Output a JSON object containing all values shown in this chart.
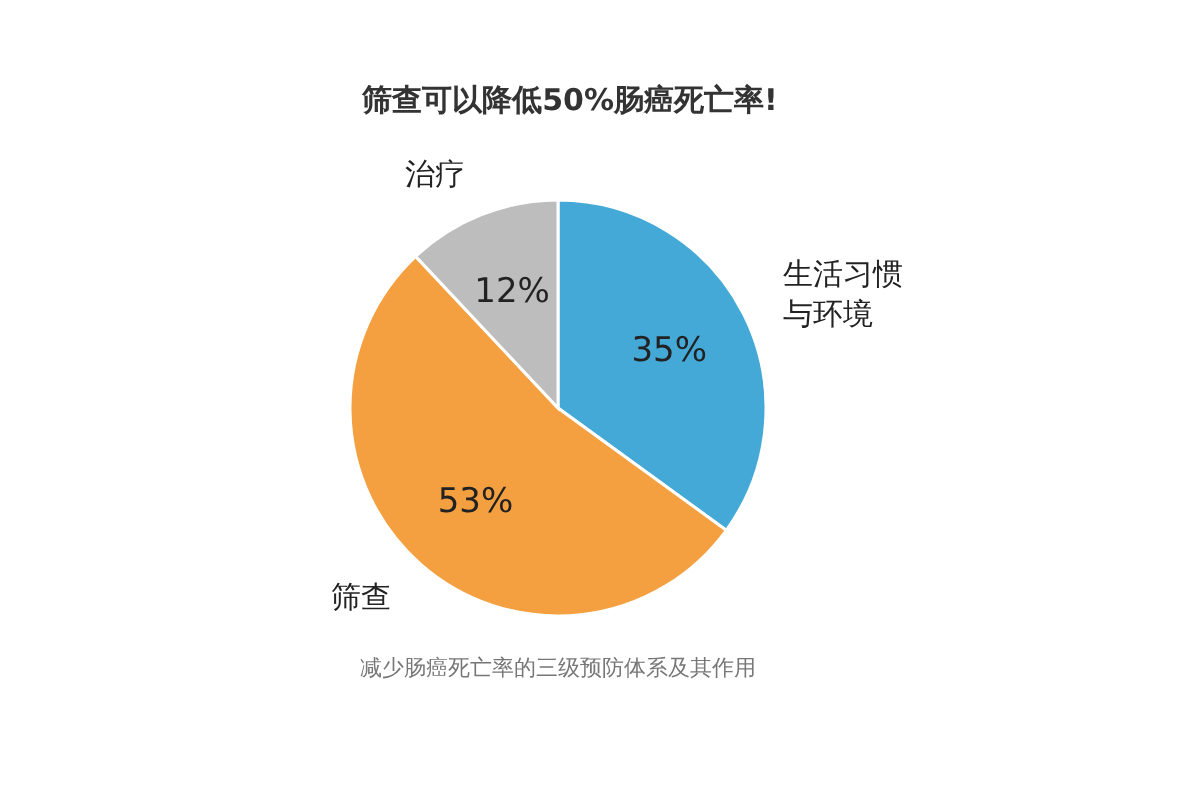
{
  "chart_data": {
    "type": "pie",
    "title": "筛查可以降低50%肠癌死亡率!",
    "categories": [
      "生活习惯与环境",
      "筛查",
      "治疗"
    ],
    "values": [
      35,
      53,
      12
    ],
    "value_labels": [
      "35%",
      "53%",
      "12%"
    ],
    "colors": [
      "#45a9d8",
      "#f4a040",
      "#bdbdbd"
    ],
    "annotations": [
      "减少肠癌死亡率的三级预防体系及其作用"
    ]
  }
}
